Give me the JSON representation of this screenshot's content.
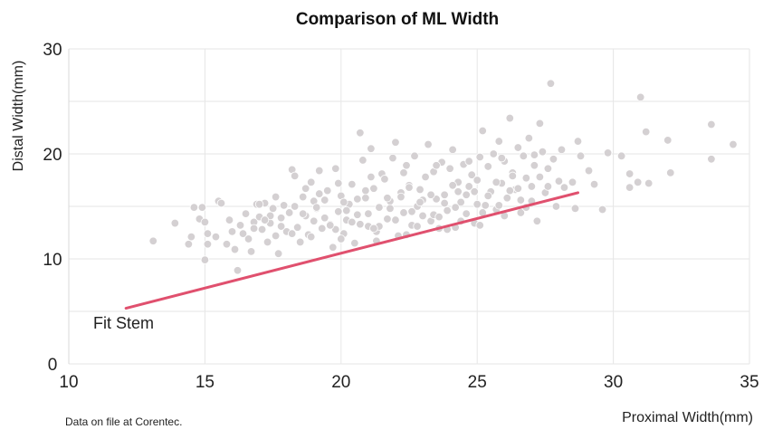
{
  "chart_data": {
    "type": "scatter",
    "title": "Comparison of ML Width",
    "xlabel": "Proximal Width(mm)",
    "ylabel": "Distal Width(mm)",
    "xlim": [
      10,
      35
    ],
    "ylim": [
      0,
      30
    ],
    "xticks": [
      "10",
      "15",
      "20",
      "25",
      "30",
      "35"
    ],
    "yticks": [
      "0",
      "10",
      "20",
      "30"
    ],
    "grid": true,
    "point_color": "#d4d0d2",
    "fit_line": {
      "label": "Fit Stem",
      "color": "#e0506e",
      "x": [
        12.1,
        28.7
      ],
      "y": [
        5.3,
        16.3
      ]
    },
    "points": [
      [
        13.1,
        11.7
      ],
      [
        13.9,
        13.4
      ],
      [
        14.4,
        11.4
      ],
      [
        14.5,
        12.1
      ],
      [
        14.6,
        14.9
      ],
      [
        14.8,
        13.8
      ],
      [
        14.9,
        14.9
      ],
      [
        15.0,
        13.5
      ],
      [
        15.1,
        12.4
      ],
      [
        15.1,
        11.4
      ],
      [
        15.0,
        9.9
      ],
      [
        15.4,
        12.1
      ],
      [
        15.5,
        15.5
      ],
      [
        15.6,
        15.3
      ],
      [
        15.8,
        11.4
      ],
      [
        15.9,
        13.7
      ],
      [
        16.0,
        12.6
      ],
      [
        16.1,
        10.9
      ],
      [
        16.3,
        13.2
      ],
      [
        16.4,
        12.4
      ],
      [
        16.2,
        8.9
      ],
      [
        16.6,
        11.9
      ],
      [
        16.7,
        10.7
      ],
      [
        16.8,
        13.5
      ],
      [
        16.9,
        15.2
      ],
      [
        17.0,
        14.0
      ],
      [
        17.1,
        12.8
      ],
      [
        17.2,
        15.3
      ],
      [
        17.3,
        11.6
      ],
      [
        17.4,
        13.4
      ],
      [
        17.5,
        14.8
      ],
      [
        17.6,
        12.2
      ],
      [
        17.7,
        10.5
      ],
      [
        17.8,
        13.9
      ],
      [
        17.9,
        15.1
      ],
      [
        18.0,
        12.6
      ],
      [
        18.1,
        14.4
      ],
      [
        18.2,
        18.5
      ],
      [
        18.3,
        17.9
      ],
      [
        18.4,
        13.0
      ],
      [
        18.5,
        11.6
      ],
      [
        18.6,
        15.9
      ],
      [
        18.7,
        14.1
      ],
      [
        18.8,
        12.3
      ],
      [
        18.9,
        17.3
      ],
      [
        19.0,
        13.6
      ],
      [
        19.1,
        14.8
      ],
      [
        19.2,
        18.4
      ],
      [
        19.3,
        12.9
      ],
      [
        19.4,
        15.6
      ],
      [
        19.5,
        16.5
      ],
      [
        19.6,
        13.3
      ],
      [
        19.7,
        11.1
      ],
      [
        19.8,
        18.6
      ],
      [
        19.9,
        14.5
      ],
      [
        20.0,
        16.0
      ],
      [
        20.1,
        12.4
      ],
      [
        20.2,
        13.7
      ],
      [
        20.3,
        15.2
      ],
      [
        20.4,
        17.1
      ],
      [
        20.5,
        11.5
      ],
      [
        20.6,
        14.2
      ],
      [
        20.7,
        22.0
      ],
      [
        20.8,
        19.4
      ],
      [
        20.9,
        15.8
      ],
      [
        21.0,
        13.1
      ],
      [
        21.1,
        20.5
      ],
      [
        21.2,
        16.7
      ],
      [
        21.3,
        12.6
      ],
      [
        21.4,
        14.9
      ],
      [
        21.5,
        18.1
      ],
      [
        21.6,
        17.6
      ],
      [
        21.7,
        13.8
      ],
      [
        21.8,
        15.5
      ],
      [
        21.9,
        19.6
      ],
      [
        22.0,
        21.1
      ],
      [
        22.1,
        12.2
      ],
      [
        22.2,
        16.3
      ],
      [
        22.3,
        14.4
      ],
      [
        22.4,
        18.9
      ],
      [
        22.5,
        17.0
      ],
      [
        22.6,
        13.2
      ],
      [
        22.7,
        19.8
      ],
      [
        22.8,
        15.0
      ],
      [
        22.9,
        16.6
      ],
      [
        23.0,
        14.1
      ],
      [
        23.1,
        17.8
      ],
      [
        23.2,
        20.9
      ],
      [
        23.3,
        13.6
      ],
      [
        23.4,
        18.3
      ],
      [
        23.5,
        15.7
      ],
      [
        23.6,
        12.9
      ],
      [
        23.7,
        19.2
      ],
      [
        23.8,
        16.1
      ],
      [
        23.9,
        14.6
      ],
      [
        24.0,
        18.6
      ],
      [
        24.1,
        20.4
      ],
      [
        24.2,
        13.0
      ],
      [
        24.3,
        17.3
      ],
      [
        24.4,
        15.4
      ],
      [
        24.5,
        19.0
      ],
      [
        24.6,
        14.3
      ],
      [
        24.7,
        16.9
      ],
      [
        24.8,
        18.0
      ],
      [
        24.9,
        13.4
      ],
      [
        25.0,
        17.5
      ],
      [
        25.1,
        19.7
      ],
      [
        25.2,
        22.2
      ],
      [
        25.3,
        15.1
      ],
      [
        25.4,
        18.8
      ],
      [
        25.5,
        16.4
      ],
      [
        25.6,
        20.0
      ],
      [
        25.7,
        14.7
      ],
      [
        25.8,
        21.2
      ],
      [
        25.9,
        17.2
      ],
      [
        26.0,
        19.3
      ],
      [
        26.1,
        15.8
      ],
      [
        26.2,
        23.4
      ],
      [
        26.3,
        18.2
      ],
      [
        26.4,
        16.6
      ],
      [
        26.5,
        20.6
      ],
      [
        26.6,
        14.4
      ],
      [
        26.7,
        19.8
      ],
      [
        26.8,
        17.7
      ],
      [
        26.9,
        21.5
      ],
      [
        27.0,
        15.5
      ],
      [
        27.1,
        18.9
      ],
      [
        27.2,
        13.6
      ],
      [
        27.3,
        22.9
      ],
      [
        27.4,
        20.2
      ],
      [
        27.5,
        16.3
      ],
      [
        27.6,
        18.6
      ],
      [
        27.7,
        26.7
      ],
      [
        27.8,
        19.5
      ],
      [
        27.9,
        15.0
      ],
      [
        28.0,
        17.4
      ],
      [
        28.1,
        20.4
      ],
      [
        28.2,
        16.8
      ],
      [
        28.5,
        17.3
      ],
      [
        28.7,
        21.2
      ],
      [
        28.6,
        14.8
      ],
      [
        28.8,
        19.8
      ],
      [
        29.1,
        18.4
      ],
      [
        29.3,
        17.1
      ],
      [
        29.6,
        14.7
      ],
      [
        29.8,
        20.1
      ],
      [
        30.3,
        19.8
      ],
      [
        30.6,
        18.1
      ],
      [
        30.6,
        16.8
      ],
      [
        30.9,
        17.3
      ],
      [
        31.0,
        25.4
      ],
      [
        31.2,
        22.1
      ],
      [
        31.3,
        17.2
      ],
      [
        32.0,
        21.3
      ],
      [
        32.1,
        18.2
      ],
      [
        33.6,
        22.8
      ],
      [
        33.6,
        19.5
      ],
      [
        34.4,
        20.9
      ],
      [
        17.0,
        15.2
      ],
      [
        17.4,
        14.1
      ],
      [
        17.8,
        13.1
      ],
      [
        18.2,
        12.4
      ],
      [
        18.6,
        14.3
      ],
      [
        19.0,
        15.5
      ],
      [
        19.4,
        13.9
      ],
      [
        19.8,
        12.8
      ],
      [
        20.2,
        14.6
      ],
      [
        20.6,
        15.7
      ],
      [
        21.0,
        14.3
      ],
      [
        21.4,
        13.1
      ],
      [
        21.8,
        14.8
      ],
      [
        22.2,
        15.9
      ],
      [
        22.6,
        14.5
      ],
      [
        23.0,
        15.6
      ],
      [
        23.4,
        14.2
      ],
      [
        23.8,
        15.3
      ],
      [
        24.2,
        14.9
      ],
      [
        24.6,
        16.1
      ],
      [
        25.0,
        15.2
      ],
      [
        25.4,
        16.0
      ],
      [
        25.8,
        15.1
      ],
      [
        26.2,
        16.5
      ],
      [
        26.6,
        15.6
      ],
      [
        27.0,
        16.9
      ],
      [
        18.3,
        15.0
      ],
      [
        19.2,
        16.2
      ],
      [
        20.1,
        15.4
      ],
      [
        20.9,
        16.5
      ],
      [
        21.7,
        15.8
      ],
      [
        22.5,
        16.8
      ],
      [
        23.3,
        16.1
      ],
      [
        24.1,
        17.0
      ],
      [
        24.9,
        16.4
      ],
      [
        25.7,
        17.3
      ],
      [
        26.5,
        16.7
      ],
      [
        27.3,
        17.8
      ],
      [
        19.6,
        13.2
      ],
      [
        20.4,
        13.5
      ],
      [
        21.2,
        12.9
      ],
      [
        22.0,
        13.7
      ],
      [
        22.8,
        13.1
      ],
      [
        23.6,
        14.0
      ],
      [
        24.4,
        13.6
      ],
      [
        25.2,
        14.4
      ],
      [
        26.0,
        14.1
      ],
      [
        26.8,
        14.9
      ],
      [
        16.5,
        14.3
      ],
      [
        17.6,
        15.9
      ],
      [
        18.7,
        16.7
      ],
      [
        19.9,
        17.2
      ],
      [
        21.1,
        17.8
      ],
      [
        22.3,
        18.2
      ],
      [
        23.5,
        18.9
      ],
      [
        24.7,
        19.3
      ],
      [
        25.9,
        19.6
      ],
      [
        27.1,
        19.9
      ],
      [
        18.9,
        12.1
      ],
      [
        20.0,
        11.9
      ],
      [
        21.3,
        11.7
      ],
      [
        22.4,
        12.3
      ],
      [
        23.9,
        12.8
      ],
      [
        25.1,
        13.2
      ],
      [
        16.8,
        12.9
      ],
      [
        17.2,
        13.7
      ],
      [
        19.1,
        14.9
      ],
      [
        20.7,
        13.3
      ],
      [
        22.9,
        15.4
      ],
      [
        24.3,
        16.4
      ],
      [
        26.3,
        17.9
      ],
      [
        27.6,
        16.9
      ]
    ],
    "note": "Data on file at Corentec."
  }
}
